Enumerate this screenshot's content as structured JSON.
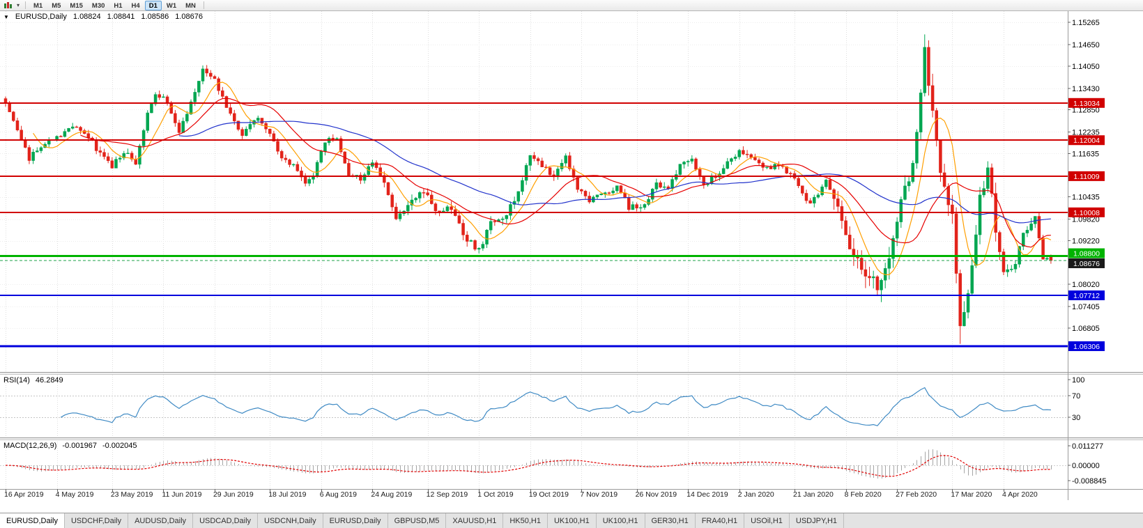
{
  "toolbar": {
    "timeframes": [
      "M1",
      "M5",
      "M15",
      "M30",
      "H1",
      "H4",
      "D1",
      "W1",
      "MN"
    ],
    "active": "D1"
  },
  "chart": {
    "info": {
      "symbol": "EURUSD,Daily",
      "open": "1.08824",
      "high": "1.08841",
      "low": "1.08586",
      "close": "1.08676"
    }
  },
  "indicators": {
    "rsi": {
      "name": "RSI(14)",
      "value": "46.2849"
    },
    "macd": {
      "name": "MACD(12,26,9)",
      "value_main": "-0.001967",
      "value_signal": "-0.002045"
    }
  },
  "colors": {
    "candle_up": "#00a651",
    "candle_down": "#e2231a",
    "rsi_line": "#3f8ac4",
    "macd_hist": "#a6a6a6",
    "macd_signal": "#e00000",
    "grid": "#dedede",
    "axis_text": "#000000",
    "bid_label_bg": "#1a1a1a"
  },
  "tabs": {
    "active_index": 0,
    "items": [
      "EURUSD,Daily",
      "USDCHF,Daily",
      "AUDUSD,Daily",
      "USDCAD,Daily",
      "USDCNH,Daily",
      "EURUSD,Daily",
      "GBPUSD,M5",
      "XAUUSD,H1",
      "HK50,H1",
      "UK100,H1",
      "UK100,H1",
      "GER30,H1",
      "FRA40,H1",
      "USOil,H1",
      "USDJPY,H1"
    ]
  },
  "chart_data": {
    "type": "candlestick",
    "symbol": "EURUSD",
    "timeframe": "Daily",
    "ohlc_current": {
      "open": 1.08824,
      "high": 1.08841,
      "low": 1.08586,
      "close": 1.08676
    },
    "num_candles": 266,
    "price_path": [
      [
        0,
        1.13
      ],
      [
        3,
        1.1235
      ],
      [
        6,
        1.115
      ],
      [
        9,
        1.1185
      ],
      [
        13,
        1.1205
      ],
      [
        17,
        1.124
      ],
      [
        20,
        1.1225
      ],
      [
        24,
        1.116
      ],
      [
        27,
        1.113
      ],
      [
        30,
        1.117
      ],
      [
        33,
        1.1135
      ],
      [
        36,
        1.128
      ],
      [
        38,
        1.133
      ],
      [
        41,
        1.1305
      ],
      [
        44,
        1.1215
      ],
      [
        47,
        1.131
      ],
      [
        50,
        1.1395
      ],
      [
        53,
        1.137
      ],
      [
        56,
        1.129
      ],
      [
        60,
        1.1215
      ],
      [
        64,
        1.126
      ],
      [
        67,
        1.1225
      ],
      [
        70,
        1.115
      ],
      [
        73,
        1.113
      ],
      [
        76,
        1.1075
      ],
      [
        78,
        1.1105
      ],
      [
        81,
        1.12
      ],
      [
        84,
        1.121
      ],
      [
        87,
        1.1105
      ],
      [
        90,
        1.1095
      ],
      [
        93,
        1.1145
      ],
      [
        96,
        1.1075
      ],
      [
        99,
        1.0975
      ],
      [
        103,
        1.103
      ],
      [
        106,
        1.106
      ],
      [
        109,
        1.1
      ],
      [
        113,
        1.1015
      ],
      [
        116,
        1.094
      ],
      [
        120,
        1.0895
      ],
      [
        123,
        1.0975
      ],
      [
        126,
        1.0985
      ],
      [
        129,
        1.103
      ],
      [
        133,
        1.1165
      ],
      [
        136,
        1.113
      ],
      [
        139,
        1.11
      ],
      [
        142,
        1.1155
      ],
      [
        145,
        1.107
      ],
      [
        148,
        1.1035
      ],
      [
        152,
        1.105
      ],
      [
        155,
        1.1075
      ],
      [
        158,
        1.1015
      ],
      [
        162,
        1.102
      ],
      [
        165,
        1.108
      ],
      [
        168,
        1.1065
      ],
      [
        171,
        1.113
      ],
      [
        174,
        1.1145
      ],
      [
        177,
        1.108
      ],
      [
        180,
        1.11
      ],
      [
        183,
        1.114
      ],
      [
        186,
        1.117
      ],
      [
        189,
        1.115
      ],
      [
        192,
        1.112
      ],
      [
        196,
        1.1135
      ],
      [
        200,
        1.1095
      ],
      [
        204,
        1.102
      ],
      [
        208,
        1.109
      ],
      [
        211,
        1.1
      ],
      [
        214,
        1.091
      ],
      [
        218,
        1.084
      ],
      [
        221,
        1.079
      ],
      [
        224,
        1.088
      ],
      [
        227,
        1.103
      ],
      [
        230,
        1.1135
      ],
      [
        233,
        1.145
      ],
      [
        235,
        1.127
      ],
      [
        237,
        1.111
      ],
      [
        240,
        1.0995
      ],
      [
        242,
        1.069
      ],
      [
        244,
        1.077
      ],
      [
        247,
        1.103
      ],
      [
        249,
        1.114
      ],
      [
        251,
        1.095
      ],
      [
        253,
        1.083
      ],
      [
        256,
        1.086
      ],
      [
        258,
        1.0935
      ],
      [
        261,
        1.098
      ],
      [
        263,
        1.088
      ],
      [
        265,
        1.08676
      ]
    ],
    "y_axis": {
      "ticks": [
        "1.15265",
        "1.14650",
        "1.14050",
        "1.13430",
        "1.12850",
        "1.12235",
        "1.11635",
        "1.10435",
        "1.09820",
        "1.09220",
        "1.08020",
        "1.07405",
        "1.06805"
      ]
    },
    "x_axis": {
      "labels": [
        "16 Apr 2019",
        "4 May 2019",
        "23 May 2019",
        "11 Jun 2019",
        "29 Jun 2019",
        "18 Jul 2019",
        "6 Aug 2019",
        "24 Aug 2019",
        "12 Sep 2019",
        "1 Oct 2019",
        "19 Oct 2019",
        "7 Nov 2019",
        "26 Nov 2019",
        "14 Dec 2019",
        "2 Jan 2020",
        "21 Jan 2020",
        "8 Feb 2020",
        "27 Feb 2020",
        "17 Mar 2020",
        "4 Apr 2020"
      ]
    },
    "horizontal_levels": [
      {
        "price": 1.13034,
        "label": "1.13034",
        "color": "#d10000",
        "width": 2,
        "label_dy": 0
      },
      {
        "price": 1.12004,
        "label": "1.12004",
        "color": "#d10000",
        "width": 2,
        "label_dy": 0
      },
      {
        "price": 1.11009,
        "label": "1.11009",
        "color": "#d10000",
        "width": 2,
        "label_dy": 0
      },
      {
        "price": 1.10008,
        "label": "1.10008",
        "color": "#d10000",
        "width": 2,
        "label_dy": 0
      },
      {
        "price": 1.088,
        "label": "1.08800",
        "color": "#00b300",
        "width": 3,
        "label_dy": -4
      },
      {
        "price": 1.07712,
        "label": "1.07712",
        "color": "#0000dd",
        "width": 2,
        "label_dy": 0
      },
      {
        "price": 1.06306,
        "label": "1.06306",
        "color": "#0000dd",
        "width": 3,
        "label_dy": 0
      }
    ],
    "bid_line": {
      "price": 1.08676,
      "label": "1.08676",
      "color": "#1ca14a",
      "label_dy": 4
    },
    "moving_averages": [
      {
        "period": 8,
        "color": "#ff9f00"
      },
      {
        "period": 20,
        "color": "#e60000"
      },
      {
        "period": 45,
        "color": "#2233cc"
      }
    ],
    "rsi": {
      "period": 14,
      "levels": [
        70,
        30
      ],
      "ticks": [
        "100",
        "70",
        "30"
      ]
    },
    "macd": {
      "fast": 12,
      "slow": 26,
      "signal": 9,
      "ticks": [
        "0.011277",
        "0.00000",
        "-0.008845"
      ]
    }
  }
}
